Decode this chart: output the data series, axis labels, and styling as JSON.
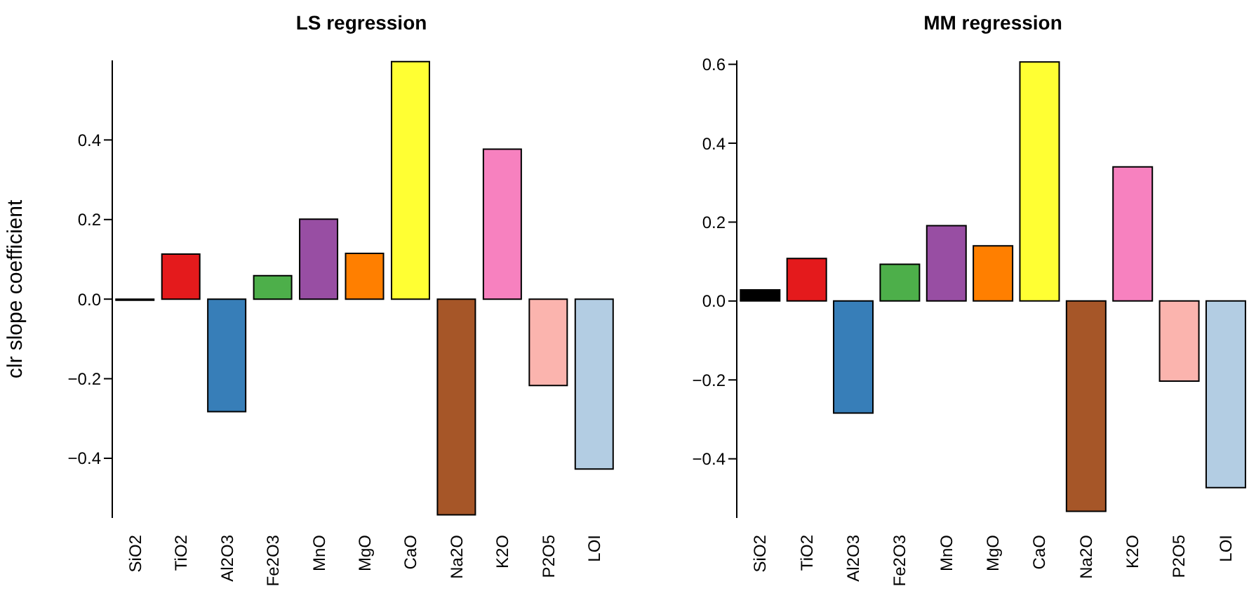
{
  "chart_data": [
    {
      "type": "bar",
      "title": "LS regression",
      "ylabel": "clr slope coefficient",
      "categories": [
        "SiO2",
        "TiO2",
        "Al2O3",
        "Fe2O3",
        "MnO",
        "MgO",
        "CaO",
        "Na2O",
        "K2O",
        "P2O5",
        "LOI"
      ],
      "values": [
        -0.003,
        0.113,
        -0.283,
        0.059,
        0.201,
        0.115,
        0.597,
        -0.542,
        0.377,
        -0.217,
        -0.427
      ],
      "colors": [
        "#000000",
        "#e41a1c",
        "#377eb8",
        "#4daf4a",
        "#984ea3",
        "#ff7f00",
        "#ffff33",
        "#a65628",
        "#f781bf",
        "#fbb4ae",
        "#b3cde3"
      ],
      "ylim": [
        -0.55,
        0.6
      ],
      "yticks": [
        -0.4,
        -0.2,
        {
          "value": 0,
          "label": "0.0"
        },
        0.2,
        0.4
      ],
      "grid": false
    },
    {
      "type": "bar",
      "title": "MM regression",
      "categories": [
        "SiO2",
        "TiO2",
        "Al2O3",
        "Fe2O3",
        "MnO",
        "MgO",
        "CaO",
        "Na2O",
        "K2O",
        "P2O5",
        "LOI"
      ],
      "values": [
        0.028,
        0.108,
        -0.284,
        0.093,
        0.191,
        0.14,
        0.606,
        -0.533,
        0.34,
        -0.203,
        -0.473
      ],
      "colors": [
        "#000000",
        "#e41a1c",
        "#377eb8",
        "#4daf4a",
        "#984ea3",
        "#ff7f00",
        "#ffff33",
        "#a65628",
        "#f781bf",
        "#fbb4ae",
        "#b3cde3"
      ],
      "ylim": [
        -0.55,
        0.61
      ],
      "yticks": [
        -0.4,
        -0.2,
        {
          "value": 0,
          "label": "0.0"
        },
        0.2,
        0.4,
        0.6
      ],
      "grid": false
    }
  ]
}
